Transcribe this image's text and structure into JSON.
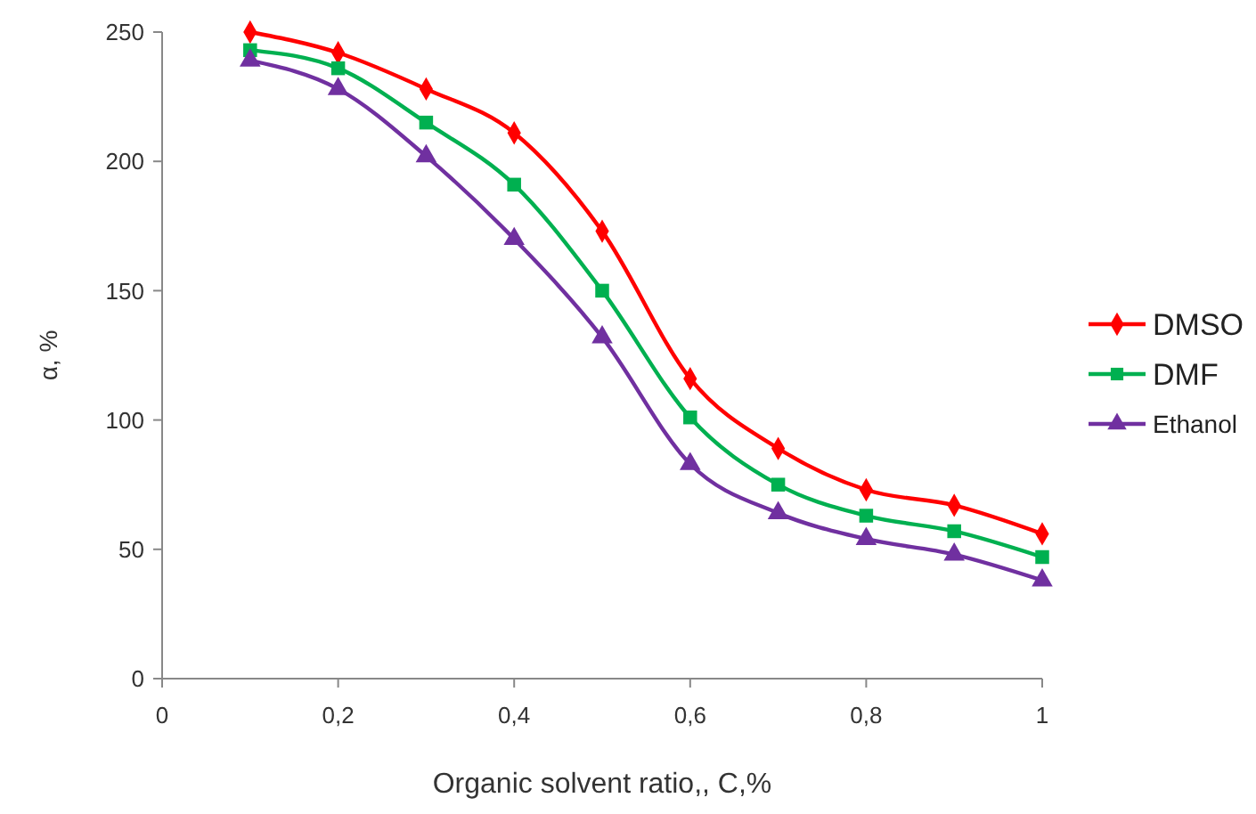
{
  "chart_data": {
    "type": "line",
    "xlabel": "Organic solvent ratio,, C,%",
    "ylabel": "α, %",
    "x": [
      0.1,
      0.2,
      0.3,
      0.4,
      0.5,
      0.6,
      0.7,
      0.8,
      0.9,
      1
    ],
    "series": [
      {
        "name": "DMSO",
        "color": "#ff0000",
        "marker": "diamond",
        "values": [
          250,
          242,
          228,
          211,
          173,
          116,
          89,
          73,
          67,
          56
        ]
      },
      {
        "name": "DMF",
        "color": "#00b050",
        "marker": "square",
        "values": [
          243,
          236,
          215,
          191,
          150,
          101,
          75,
          63,
          57,
          47
        ]
      },
      {
        "name": "Ethanol",
        "color": "#7030a0",
        "marker": "triangle",
        "values": [
          239,
          228,
          202,
          170,
          132,
          83,
          64,
          54,
          48,
          38
        ]
      }
    ],
    "xlim": [
      0,
      1
    ],
    "xticks": [
      0,
      {
        "value": 0.2,
        "label": "0,2"
      },
      {
        "value": 0.4,
        "label": "0,4"
      },
      {
        "value": 0.6,
        "label": "0,6"
      },
      {
        "value": 0.8,
        "label": "0,8"
      },
      1
    ],
    "ylim": [
      0,
      250
    ],
    "yticks": [
      0,
      50,
      100,
      150,
      200,
      250
    ],
    "grid": false,
    "legend": "right",
    "line_style": "solid"
  }
}
